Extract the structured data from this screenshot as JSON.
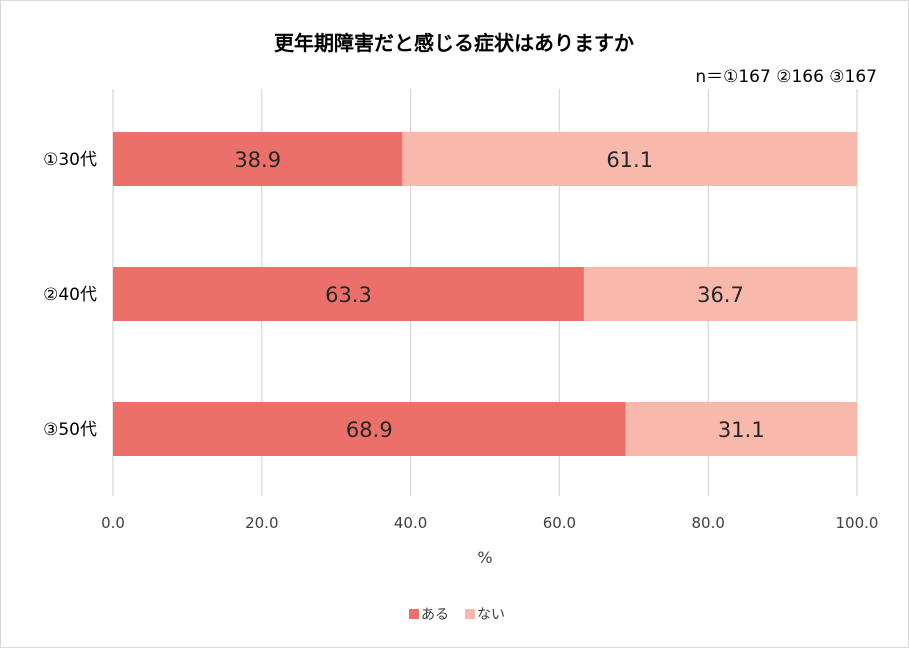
{
  "chart_data": {
    "type": "bar",
    "orientation": "horizontal",
    "stacked": true,
    "title": "更年期障害だと感じる症状はありますか",
    "subtitle": "n＝①167 ②166 ③167",
    "categories": [
      "①30代",
      "②40代",
      "③50代"
    ],
    "series": [
      {
        "name": "ある",
        "values": [
          38.9,
          63.3,
          68.9
        ],
        "color": "#ec706a"
      },
      {
        "name": "ない",
        "values": [
          61.1,
          36.7,
          31.1
        ],
        "color": "#f8b8ab"
      }
    ],
    "data_labels": [
      [
        "38.9",
        "63.3",
        "68.9"
      ],
      [
        "61.1",
        "36.7",
        "31.1"
      ]
    ],
    "xlabel": "%",
    "ylabel": "",
    "xlim": [
      0,
      100
    ],
    "xticks": [
      "0.0",
      "20.0",
      "40.0",
      "60.0",
      "80.0",
      "100.0"
    ],
    "grid": true,
    "legend_position": "bottom"
  }
}
